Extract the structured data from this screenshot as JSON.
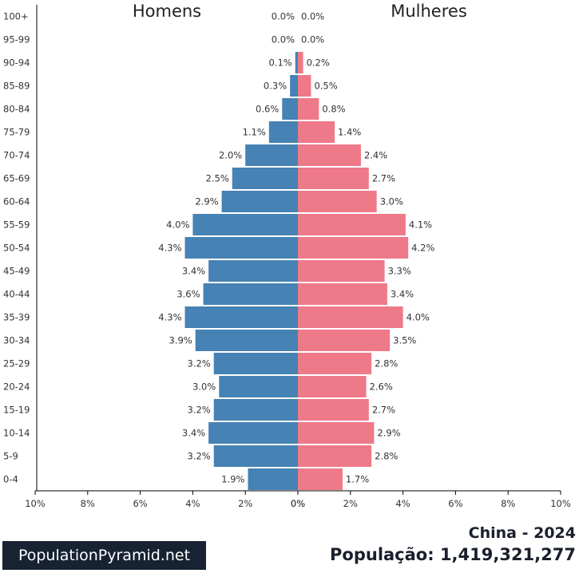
{
  "chart_data": {
    "type": "bar",
    "orientation": "horizontal",
    "categories": [
      "0-4",
      "5-9",
      "10-14",
      "15-19",
      "20-24",
      "25-29",
      "30-34",
      "35-39",
      "40-44",
      "45-49",
      "50-54",
      "55-59",
      "60-64",
      "65-69",
      "70-74",
      "75-79",
      "80-84",
      "85-89",
      "90-94",
      "95-99",
      "100+"
    ],
    "series": [
      {
        "name": "Homens",
        "color": "#4682b4",
        "values": [
          1.9,
          3.2,
          3.4,
          3.2,
          3.0,
          3.2,
          3.9,
          4.3,
          3.6,
          3.4,
          4.3,
          4.0,
          2.9,
          2.5,
          2.0,
          1.1,
          0.6,
          0.3,
          0.1,
          0.0,
          0.0
        ],
        "labels": [
          "1.9%",
          "3.2%",
          "3.4%",
          "3.2%",
          "3.0%",
          "3.2%",
          "3.9%",
          "4.3%",
          "3.6%",
          "3.4%",
          "4.3%",
          "4.0%",
          "2.9%",
          "2.5%",
          "2.0%",
          "1.1%",
          "0.6%",
          "0.3%",
          "0.1%",
          "0.0%",
          "0.0%"
        ]
      },
      {
        "name": "Mulheres",
        "color": "#ee7989",
        "values": [
          1.7,
          2.8,
          2.9,
          2.7,
          2.6,
          2.8,
          3.5,
          4.0,
          3.4,
          3.3,
          4.2,
          4.1,
          3.0,
          2.7,
          2.4,
          1.4,
          0.8,
          0.5,
          0.2,
          0.0,
          0.0
        ],
        "labels": [
          "1.7%",
          "2.8%",
          "2.9%",
          "2.7%",
          "2.6%",
          "2.8%",
          "3.5%",
          "4.0%",
          "3.4%",
          "3.3%",
          "4.2%",
          "4.1%",
          "3.0%",
          "2.7%",
          "2.4%",
          "1.4%",
          "0.8%",
          "0.5%",
          "0.2%",
          "0.0%",
          "0.0%"
        ]
      }
    ],
    "xlim": [
      0,
      10
    ],
    "xticks": [
      10,
      8,
      6,
      4,
      2,
      0
    ],
    "xtick_labels_left": [
      "10%",
      "8%",
      "6%",
      "4%",
      "2%",
      "0%"
    ],
    "xtick_labels_right": [
      "0%",
      "2%",
      "4%",
      "6%",
      "8%",
      "10%"
    ],
    "grid": false,
    "legend": "none"
  },
  "header": {
    "left_title": "Homens",
    "right_title": "Mulheres"
  },
  "footer": {
    "brand": "PopulationPyramid.net",
    "country_year": "China - 2024",
    "population": "População: 1,419,321,277"
  }
}
